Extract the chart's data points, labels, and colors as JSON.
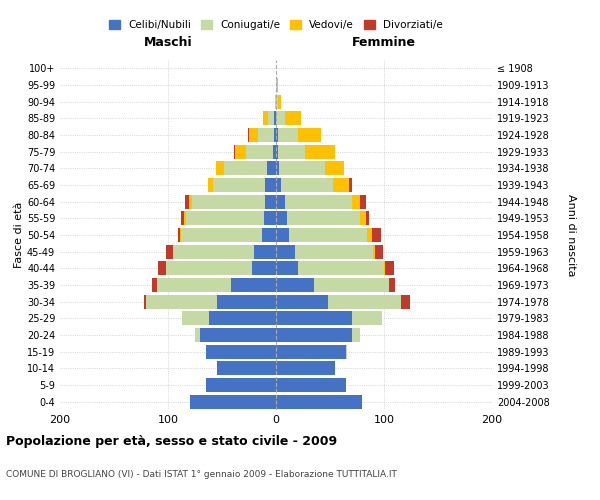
{
  "age_groups": [
    "0-4",
    "5-9",
    "10-14",
    "15-19",
    "20-24",
    "25-29",
    "30-34",
    "35-39",
    "40-44",
    "45-49",
    "50-54",
    "55-59",
    "60-64",
    "65-69",
    "70-74",
    "75-79",
    "80-84",
    "85-89",
    "90-94",
    "95-99",
    "100+"
  ],
  "birth_years": [
    "2004-2008",
    "1999-2003",
    "1994-1998",
    "1989-1993",
    "1984-1988",
    "1979-1983",
    "1974-1978",
    "1969-1973",
    "1964-1968",
    "1959-1963",
    "1954-1958",
    "1949-1953",
    "1944-1948",
    "1939-1943",
    "1934-1938",
    "1929-1933",
    "1924-1928",
    "1919-1923",
    "1914-1918",
    "1909-1913",
    "≤ 1908"
  ],
  "males": {
    "celibi": [
      80,
      65,
      55,
      65,
      70,
      62,
      55,
      42,
      22,
      20,
      13,
      11,
      10,
      10,
      8,
      3,
      2,
      2,
      0,
      0,
      0
    ],
    "coniugati": [
      0,
      0,
      0,
      0,
      5,
      25,
      65,
      68,
      80,
      75,
      75,
      72,
      68,
      48,
      40,
      25,
      15,
      5,
      1,
      0,
      0
    ],
    "vedovi": [
      0,
      0,
      0,
      0,
      0,
      0,
      0,
      0,
      0,
      0,
      1,
      2,
      3,
      5,
      8,
      10,
      8,
      5,
      0,
      0,
      0
    ],
    "divorziati": [
      0,
      0,
      0,
      0,
      0,
      0,
      2,
      5,
      7,
      7,
      2,
      3,
      3,
      0,
      0,
      1,
      1,
      0,
      0,
      0,
      0
    ]
  },
  "females": {
    "nubili": [
      80,
      65,
      55,
      65,
      70,
      70,
      48,
      35,
      20,
      18,
      12,
      10,
      8,
      5,
      3,
      2,
      2,
      0,
      0,
      0,
      0
    ],
    "coniugate": [
      0,
      0,
      0,
      1,
      8,
      28,
      68,
      70,
      80,
      72,
      72,
      68,
      62,
      48,
      42,
      25,
      18,
      8,
      2,
      1,
      0
    ],
    "vedove": [
      0,
      0,
      0,
      0,
      0,
      0,
      0,
      0,
      1,
      2,
      5,
      5,
      8,
      15,
      18,
      28,
      22,
      15,
      3,
      1,
      0
    ],
    "divorziate": [
      0,
      0,
      0,
      0,
      0,
      0,
      8,
      5,
      8,
      7,
      8,
      3,
      5,
      2,
      0,
      0,
      0,
      0,
      0,
      0,
      0
    ]
  },
  "colors": {
    "celibi": "#4472c4",
    "coniugati": "#c5d9a4",
    "vedovi": "#ffc000",
    "divorziati": "#c0392b"
  },
  "xlim": 200,
  "title": "Popolazione per età, sesso e stato civile - 2009",
  "subtitle": "COMUNE DI BROGLIANO (VI) - Dati ISTAT 1° gennaio 2009 - Elaborazione TUTTITALIA.IT",
  "xlabel_left": "Maschi",
  "xlabel_right": "Femmine",
  "ylabel_left": "Fasce di età",
  "ylabel_right": "Anni di nascita",
  "legend_labels": [
    "Celibi/Nubili",
    "Coniugati/e",
    "Vedovi/e",
    "Divorziati/e"
  ],
  "bg_color": "#ffffff",
  "grid_color": "#bbbbbb"
}
